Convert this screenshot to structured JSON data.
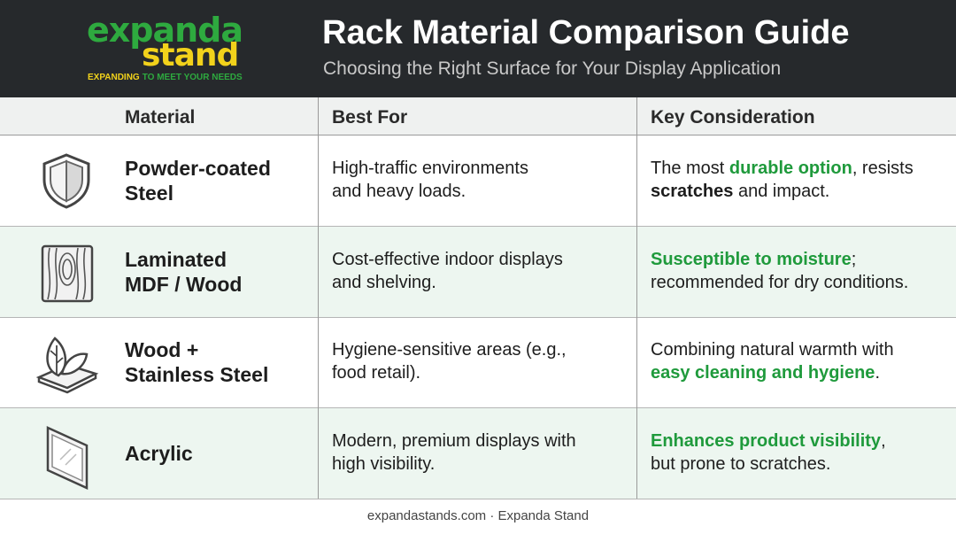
{
  "header": {
    "logo": {
      "word1": "expanda",
      "word2": "stand",
      "tagline": [
        "EXPANDING",
        "TO MEET YOUR NEEDS"
      ]
    },
    "title": "Rack Material Comparison Guide",
    "subtitle": "Choosing the Right Surface for Your Display Application"
  },
  "table": {
    "columns": [
      "Material",
      "Best For",
      "Key Consideration"
    ],
    "rows": [
      {
        "material": [
          "Powder-coated",
          "Steel"
        ],
        "best_for": [
          "High-traffic environments",
          "and heavy loads."
        ],
        "key": [
          [
            {
              "text": "The most ",
              "style": "plain"
            },
            {
              "text": "durable option",
              "style": "highlight"
            },
            {
              "text": ", resists",
              "style": "plain"
            }
          ],
          [
            {
              "text": "scratches",
              "style": "bold"
            },
            {
              "text": " and impact.",
              "style": "plain"
            }
          ]
        ]
      },
      {
        "material": [
          "Laminated",
          "MDF / Wood"
        ],
        "best_for": [
          "Cost-effective indoor displays",
          "and shelving."
        ],
        "key": [
          [
            {
              "text": "Susceptible to moisture",
              "style": "highlight"
            },
            {
              "text": ";",
              "style": "plain"
            }
          ],
          [
            {
              "text": "recommended for dry conditions.",
              "style": "plain"
            }
          ]
        ]
      },
      {
        "material": [
          "Wood +",
          "Stainless Steel"
        ],
        "best_for": [
          "Hygiene-sensitive areas (e.g.,",
          "food retail)."
        ],
        "key": [
          [
            {
              "text": "Combining natural warmth with",
              "style": "plain"
            }
          ],
          [
            {
              "text": "easy cleaning and hygiene",
              "style": "highlight"
            },
            {
              "text": ".",
              "style": "plain"
            }
          ]
        ]
      },
      {
        "material": [
          "Acrylic"
        ],
        "best_for": [
          "Modern, premium displays with",
          "high visibility."
        ],
        "key": [
          [
            {
              "text": "Enhances product visibility",
              "style": "highlight"
            },
            {
              "text": ",",
              "style": "plain"
            }
          ],
          [
            {
              "text": "but prone to scratches.",
              "style": "plain"
            }
          ]
        ]
      }
    ]
  },
  "footer": "expandastands.com · Expanda Stand"
}
